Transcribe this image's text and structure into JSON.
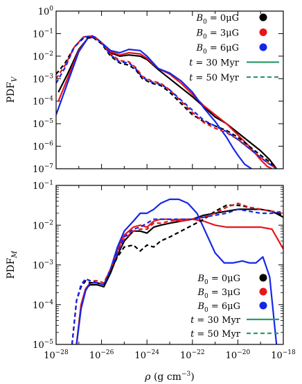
{
  "chart_data": [
    {
      "type": "line",
      "panel": "top",
      "ylabel": "PDF_V",
      "ylabel_main": "PDF",
      "ylabel_sub": "V",
      "xscale": "log",
      "yscale": "log",
      "xlim": [
        1e-28,
        1e-18
      ],
      "ylim": [
        1e-07,
        1
      ],
      "y_tick_labels": [
        "10^0",
        "10^-1",
        "10^-2",
        "10^-3",
        "10^-4",
        "10^-5",
        "10^-6",
        "10^-7"
      ],
      "legend": {
        "position": "top-right",
        "entries": [
          {
            "label": "B_0 = 0μG",
            "lhs": "B",
            "sub": "0",
            "rhs": " = 0μG",
            "marker": "dot",
            "color": "#000000"
          },
          {
            "label": "B_0 = 3μG",
            "lhs": "B",
            "sub": "0",
            "rhs": " = 3μG",
            "marker": "dot",
            "color": "#e8141c"
          },
          {
            "label": "B_0 = 6μG",
            "lhs": "B",
            "sub": "0",
            "rhs": " = 6μG",
            "marker": "dot",
            "color": "#1526e6"
          },
          {
            "label": "t = 30 Myr",
            "lhs": "t",
            "sub": "",
            "rhs": " = 30 Myr",
            "marker": "solid",
            "color": "#2e9a6a"
          },
          {
            "label": "t = 50 Myr",
            "lhs": "t",
            "sub": "",
            "rhs": " = 50 Myr",
            "marker": "dashed",
            "color": "#2e9a6a"
          }
        ]
      },
      "series": [
        {
          "b": "0μG",
          "t": "30 Myr",
          "style": "solid",
          "color": "#000000",
          "x": [
            -27.9,
            -27.5,
            -27.0,
            -26.6,
            -26.3,
            -26.0,
            -25.6,
            -25.2,
            -24.8,
            -24.3,
            -24.0,
            -23.5,
            -23.0,
            -22.5,
            -22.0,
            -21.5,
            -21.0,
            -20.5,
            -20.0,
            -19.5,
            -19.0,
            -18.6,
            -18.3
          ],
          "y": [
            -3.6,
            -2.8,
            -1.7,
            -1.2,
            -1.15,
            -1.4,
            -1.85,
            -2.0,
            -1.95,
            -2.0,
            -2.15,
            -2.6,
            -3.0,
            -3.4,
            -3.8,
            -4.25,
            -4.7,
            -5.0,
            -5.4,
            -5.8,
            -6.2,
            -6.6,
            -7.0
          ]
        },
        {
          "b": "3μG",
          "t": "30 Myr",
          "style": "solid",
          "color": "#e8141c",
          "x": [
            -27.9,
            -27.5,
            -27.0,
            -26.6,
            -26.3,
            -26.0,
            -25.6,
            -25.2,
            -24.8,
            -24.3,
            -24.0,
            -23.5,
            -23.0,
            -22.5,
            -22.0,
            -21.5,
            -21.0,
            -20.5,
            -20.0,
            -19.5,
            -19.0,
            -18.7,
            -18.5
          ],
          "y": [
            -4.0,
            -3.0,
            -1.75,
            -1.2,
            -1.15,
            -1.4,
            -1.8,
            -1.95,
            -1.85,
            -1.9,
            -2.1,
            -2.55,
            -2.8,
            -3.2,
            -3.7,
            -4.2,
            -4.6,
            -5.0,
            -5.5,
            -6.0,
            -6.6,
            -6.9,
            -7.0
          ]
        },
        {
          "b": "6μG",
          "t": "30 Myr",
          "style": "solid",
          "color": "#1526e6",
          "x": [
            -28.0,
            -27.5,
            -27.0,
            -26.6,
            -26.3,
            -26.0,
            -25.6,
            -25.2,
            -24.8,
            -24.3,
            -24.0,
            -23.5,
            -23.0,
            -22.5,
            -22.0,
            -21.5,
            -21.0,
            -20.5,
            -20.2,
            -20.0,
            -19.7,
            -19.4
          ],
          "y": [
            -4.6,
            -3.2,
            -1.8,
            -1.2,
            -1.15,
            -1.4,
            -1.75,
            -1.85,
            -1.7,
            -1.75,
            -2.0,
            -2.55,
            -2.75,
            -3.1,
            -3.6,
            -4.3,
            -4.9,
            -5.6,
            -6.1,
            -6.4,
            -6.8,
            -7.0
          ]
        },
        {
          "b": "0μG",
          "t": "50 Myr",
          "style": "dashed",
          "color": "#000000",
          "x": [
            -28.0,
            -27.6,
            -27.2,
            -26.8,
            -26.4,
            -26.0,
            -25.6,
            -25.2,
            -24.8,
            -24.5,
            -24.2,
            -23.8,
            -23.4,
            -23.0,
            -22.5,
            -22.0,
            -21.5,
            -21.0,
            -20.5,
            -20.0,
            -19.5,
            -19.0,
            -18.6,
            -18.3
          ],
          "y": [
            -2.8,
            -2.3,
            -1.6,
            -1.2,
            -1.15,
            -1.45,
            -2.0,
            -2.3,
            -2.4,
            -2.6,
            -3.0,
            -3.2,
            -3.3,
            -3.6,
            -4.1,
            -4.6,
            -4.9,
            -5.1,
            -5.3,
            -5.6,
            -6.0,
            -6.4,
            -6.7,
            -7.0
          ]
        },
        {
          "b": "3μG",
          "t": "50 Myr",
          "style": "dashed",
          "color": "#e8141c",
          "x": [
            -28.0,
            -27.6,
            -27.2,
            -26.8,
            -26.4,
            -26.0,
            -25.6,
            -25.2,
            -24.8,
            -24.5,
            -24.2,
            -23.8,
            -23.4,
            -23.0,
            -22.5,
            -22.0,
            -21.5,
            -21.0,
            -20.5,
            -20.0,
            -19.5,
            -19.0,
            -18.6,
            -18.3
          ],
          "y": [
            -3.0,
            -2.4,
            -1.6,
            -1.15,
            -1.1,
            -1.4,
            -1.9,
            -2.2,
            -2.25,
            -2.5,
            -2.9,
            -3.1,
            -3.2,
            -3.5,
            -4.0,
            -4.5,
            -4.95,
            -5.2,
            -5.4,
            -5.7,
            -6.1,
            -6.5,
            -6.8,
            -7.0
          ]
        },
        {
          "b": "6μG",
          "t": "50 Myr",
          "style": "dashed",
          "color": "#1526e6",
          "x": [
            -28.0,
            -27.6,
            -27.2,
            -26.8,
            -26.4,
            -26.0,
            -25.6,
            -25.2,
            -24.8,
            -24.5,
            -24.2,
            -23.8,
            -23.4,
            -23.0,
            -22.5,
            -22.0,
            -21.5,
            -21.0,
            -20.5,
            -20.0,
            -19.5,
            -19.0,
            -18.6,
            -18.3
          ],
          "y": [
            -3.2,
            -2.5,
            -1.6,
            -1.15,
            -1.1,
            -1.4,
            -1.95,
            -2.25,
            -2.3,
            -2.55,
            -2.95,
            -3.15,
            -3.25,
            -3.5,
            -3.95,
            -4.4,
            -4.85,
            -5.1,
            -5.35,
            -5.7,
            -6.1,
            -6.5,
            -6.8,
            -7.0
          ]
        }
      ]
    },
    {
      "type": "line",
      "panel": "bottom",
      "ylabel": "PDF_M",
      "ylabel_main": "PDF",
      "ylabel_sub": "M",
      "xlabel": "ρ  (g cm^−3)",
      "xlabel_parts": {
        "symbol": "ρ",
        "unit_pre": "(g cm",
        "unit_exp": "−3",
        "unit_post": ")"
      },
      "xscale": "log",
      "yscale": "log",
      "xlim": [
        1e-28,
        1e-18
      ],
      "ylim": [
        1e-05,
        0.1
      ],
      "x_tick_labels": [
        "10^-28",
        "10^-26",
        "10^-24",
        "10^-22",
        "10^-20",
        "10^-18"
      ],
      "y_tick_labels": [
        "10^-1",
        "10^-2",
        "10^-3",
        "10^-4",
        "10^-5"
      ],
      "legend": {
        "position": "lower-right",
        "entries": [
          {
            "label": "B_0 = 0μG",
            "lhs": "B",
            "sub": "0",
            "rhs": " = 0μG",
            "marker": "dot",
            "color": "#000000"
          },
          {
            "label": "B_0 = 3μG",
            "lhs": "B",
            "sub": "0",
            "rhs": " = 3μG",
            "marker": "dot",
            "color": "#e8141c"
          },
          {
            "label": "B_0 = 6μG",
            "lhs": "B",
            "sub": "0",
            "rhs": " = 6μG",
            "marker": "dot",
            "color": "#1526e6"
          },
          {
            "label": "t = 30 Myr",
            "lhs": "t",
            "sub": "",
            "rhs": " = 30 Myr",
            "marker": "solid",
            "color": "#2e9a6a"
          },
          {
            "label": "t = 50 Myr",
            "lhs": "t",
            "sub": "",
            "rhs": " = 50 Myr",
            "marker": "dashed",
            "color": "#2e9a6a"
          }
        ]
      },
      "series": [
        {
          "b": "0μG",
          "t": "30 Myr",
          "style": "solid",
          "color": "#000000",
          "x": [
            -27.1,
            -26.9,
            -26.7,
            -26.5,
            -26.2,
            -25.9,
            -25.6,
            -25.3,
            -25.0,
            -24.6,
            -24.3,
            -24.0,
            -23.7,
            -23.4,
            -23.0,
            -22.5,
            -22.0,
            -21.5,
            -21.0,
            -20.5,
            -20.0,
            -19.5,
            -19.0,
            -18.5,
            -18.0
          ],
          "y": [
            -5.0,
            -4.0,
            -3.6,
            -3.5,
            -3.5,
            -3.55,
            -3.2,
            -2.75,
            -2.4,
            -2.15,
            -2.15,
            -2.2,
            -2.05,
            -2.0,
            -1.95,
            -1.9,
            -1.85,
            -1.75,
            -1.7,
            -1.65,
            -1.6,
            -1.6,
            -1.6,
            -1.65,
            -1.8
          ]
        },
        {
          "b": "3μG",
          "t": "30 Myr",
          "style": "solid",
          "color": "#e8141c",
          "x": [
            -27.1,
            -26.9,
            -26.7,
            -26.5,
            -26.2,
            -25.9,
            -25.6,
            -25.3,
            -25.0,
            -24.6,
            -24.3,
            -24.0,
            -23.7,
            -23.4,
            -23.0,
            -22.5,
            -22.0,
            -21.5,
            -21.0,
            -20.5,
            -20.0,
            -19.5,
            -19.0,
            -18.5,
            -18.3,
            -18.0
          ],
          "y": [
            -5.0,
            -4.0,
            -3.6,
            -3.45,
            -3.45,
            -3.5,
            -3.1,
            -2.6,
            -2.25,
            -2.05,
            -2.0,
            -2.05,
            -1.9,
            -1.85,
            -1.85,
            -1.9,
            -1.85,
            -1.9,
            -2.0,
            -2.05,
            -2.05,
            -2.05,
            -2.05,
            -2.1,
            -2.3,
            -2.6
          ]
        },
        {
          "b": "6μG",
          "t": "30 Myr",
          "style": "solid",
          "color": "#1526e6",
          "x": [
            -27.1,
            -26.9,
            -26.7,
            -26.5,
            -26.2,
            -25.9,
            -25.6,
            -25.3,
            -25.0,
            -24.6,
            -24.3,
            -24.0,
            -23.7,
            -23.4,
            -23.0,
            -22.6,
            -22.2,
            -21.8,
            -21.4,
            -21.0,
            -20.6,
            -20.2,
            -19.8,
            -19.5,
            -19.2,
            -18.9,
            -18.6,
            -18.3
          ],
          "y": [
            -5.0,
            -4.1,
            -3.65,
            -3.45,
            -3.45,
            -3.5,
            -3.1,
            -2.55,
            -2.15,
            -1.9,
            -1.7,
            -1.7,
            -1.6,
            -1.45,
            -1.35,
            -1.35,
            -1.45,
            -1.7,
            -2.2,
            -2.7,
            -2.95,
            -2.95,
            -2.9,
            -2.95,
            -2.95,
            -2.8,
            -3.3,
            -5.0
          ]
        },
        {
          "b": "0μG",
          "t": "50 Myr",
          "style": "dashed",
          "color": "#000000",
          "x": [
            -27.3,
            -27.1,
            -26.9,
            -26.7,
            -26.5,
            -26.2,
            -25.9,
            -25.6,
            -25.3,
            -25.0,
            -24.6,
            -24.3,
            -24.0,
            -23.7,
            -23.4,
            -23.0,
            -22.5,
            -22.0,
            -21.5,
            -21.0,
            -20.5,
            -20.0,
            -19.5,
            -19.0,
            -18.5,
            -18.0
          ],
          "y": [
            -5.0,
            -3.9,
            -3.55,
            -3.4,
            -3.45,
            -3.45,
            -3.5,
            -3.15,
            -2.8,
            -2.55,
            -2.5,
            -2.65,
            -2.5,
            -2.55,
            -2.4,
            -2.3,
            -2.15,
            -2.0,
            -1.85,
            -1.65,
            -1.5,
            -1.5,
            -1.55,
            -1.6,
            -1.65,
            -1.75
          ]
        },
        {
          "b": "3μG",
          "t": "50 Myr",
          "style": "dashed",
          "color": "#e8141c",
          "x": [
            -27.3,
            -27.1,
            -26.9,
            -26.7,
            -26.5,
            -26.2,
            -25.9,
            -25.6,
            -25.3,
            -25.0,
            -24.6,
            -24.3,
            -24.0,
            -23.7,
            -23.4,
            -23.0,
            -22.5,
            -22.0,
            -21.5,
            -21.0,
            -20.5,
            -20.0,
            -19.5,
            -19.0,
            -18.5,
            -18.0
          ],
          "y": [
            -5.0,
            -3.9,
            -3.5,
            -3.35,
            -3.4,
            -3.4,
            -3.45,
            -3.1,
            -2.7,
            -2.35,
            -2.15,
            -2.1,
            -2.1,
            -1.95,
            -1.95,
            -1.9,
            -1.85,
            -1.85,
            -1.8,
            -1.7,
            -1.55,
            -1.45,
            -1.55,
            -1.6,
            -1.65,
            -1.7
          ]
        },
        {
          "b": "6μG",
          "t": "50 Myr",
          "style": "dashed",
          "color": "#1526e6",
          "x": [
            -27.3,
            -27.1,
            -26.9,
            -26.7,
            -26.5,
            -26.2,
            -25.9,
            -25.6,
            -25.3,
            -25.0,
            -24.6,
            -24.3,
            -24.0,
            -23.7,
            -23.4,
            -23.0,
            -22.5,
            -22.0,
            -21.5,
            -21.0,
            -20.5,
            -20.0,
            -19.5,
            -19.0,
            -18.5,
            -18.0
          ],
          "y": [
            -5.0,
            -3.9,
            -3.5,
            -3.35,
            -3.4,
            -3.45,
            -3.5,
            -3.1,
            -2.7,
            -2.3,
            -2.1,
            -2.05,
            -1.95,
            -1.85,
            -1.85,
            -1.85,
            -1.85,
            -1.85,
            -1.8,
            -1.75,
            -1.7,
            -1.6,
            -1.65,
            -1.7,
            -1.7,
            -1.65
          ]
        }
      ]
    }
  ]
}
